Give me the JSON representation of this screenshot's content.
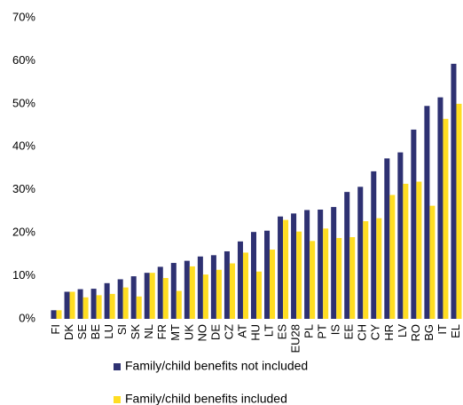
{
  "chart_data": {
    "type": "bar",
    "categories": [
      "FI",
      "DK",
      "SE",
      "BE",
      "LU",
      "SI",
      "SK",
      "NL",
      "FR",
      "MT",
      "UK",
      "NO",
      "DE",
      "CZ",
      "AT",
      "HU",
      "LT",
      "ES",
      "EU28",
      "PL",
      "PT",
      "IS",
      "EE",
      "CH",
      "CY",
      "HR",
      "LV",
      "RO",
      "BG",
      "IT",
      "EL"
    ],
    "series": [
      {
        "name": "Family/child benefits not included",
        "color": "#2e3172",
        "values": [
          2.0,
          6.3,
          6.9,
          7.0,
          8.3,
          9.2,
          9.9,
          10.7,
          12.1,
          13.0,
          13.5,
          14.5,
          14.8,
          15.7,
          18.0,
          20.2,
          20.5,
          23.8,
          24.5,
          25.3,
          25.4,
          26.0,
          29.5,
          30.7,
          34.3,
          37.3,
          38.7,
          44.0,
          49.5,
          51.5,
          59.3
        ]
      },
      {
        "name": "Family/child benefits included",
        "color": "#ffdd22",
        "values": [
          2.0,
          6.3,
          5.0,
          5.5,
          5.8,
          7.3,
          5.2,
          10.7,
          9.5,
          6.5,
          12.2,
          10.3,
          11.4,
          12.9,
          15.4,
          11.0,
          16.1,
          23.0,
          20.3,
          18.1,
          21.0,
          18.8,
          19.0,
          22.7,
          23.4,
          28.8,
          31.4,
          31.9,
          26.3,
          46.5,
          50.0
        ]
      }
    ],
    "ylim": [
      0,
      70
    ],
    "yticks": [
      {
        "value": 0,
        "label": "0%"
      },
      {
        "value": 10,
        "label": "10%"
      },
      {
        "value": 20,
        "label": "20%"
      },
      {
        "value": 30,
        "label": "30%"
      },
      {
        "value": 40,
        "label": "40%"
      },
      {
        "value": 50,
        "label": "50%"
      },
      {
        "value": 60,
        "label": "60%"
      },
      {
        "value": 70,
        "label": "70%"
      }
    ]
  }
}
